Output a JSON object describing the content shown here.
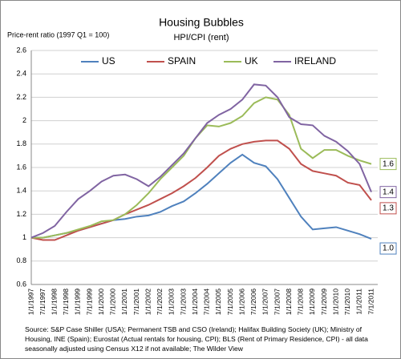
{
  "chart_data": {
    "type": "line",
    "title": "Housing Bubbles",
    "subtitle": "HPI/CPI (rent)",
    "y_label": "Price-rent ratio (1997 Q1 = 100)",
    "source": "Source: S&P Case Shiller (USA); Permanent TSB and CSO (Ireland); Halifax Building Society (UK); Ministry of Housing, INE (Spain);  Eurostat (Actual rentals for housing, CPI); BLS (Rent of Primary Residence, CPI) -  all data seasonally adjusted using Census X12 if not available; The Wilder View",
    "categories": [
      "1/1/1997",
      "7/1/1997",
      "1/1/1998",
      "7/1/1998",
      "1/1/1999",
      "7/1/1999",
      "1/1/2000",
      "7/1/2000",
      "1/1/2001",
      "7/1/2001",
      "1/1/2002",
      "7/1/2002",
      "1/1/2003",
      "7/1/2003",
      "1/1/2004",
      "7/1/2004",
      "1/1/2005",
      "7/1/2005",
      "1/1/2006",
      "7/1/2006",
      "1/1/2007",
      "7/1/2007",
      "1/1/2008",
      "7/1/2008",
      "1/1/2009",
      "7/1/2009",
      "1/1/2010",
      "7/1/2010",
      "1/1/2011",
      "7/1/2011"
    ],
    "series": [
      {
        "name": "US",
        "color": "#4f81bd",
        "values": [
          1.0,
          1.0,
          1.02,
          1.04,
          1.06,
          1.09,
          1.12,
          1.15,
          1.16,
          1.18,
          1.19,
          1.22,
          1.27,
          1.31,
          1.38,
          1.46,
          1.55,
          1.64,
          1.71,
          1.64,
          1.61,
          1.5,
          1.34,
          1.18,
          1.07,
          1.08,
          1.09,
          1.06,
          1.03,
          0.99
        ],
        "end_label": "1.0"
      },
      {
        "name": "SPAIN",
        "color": "#c0504d",
        "values": [
          1.0,
          0.98,
          0.98,
          1.02,
          1.06,
          1.09,
          1.12,
          1.15,
          1.2,
          1.24,
          1.28,
          1.33,
          1.38,
          1.44,
          1.51,
          1.6,
          1.7,
          1.76,
          1.8,
          1.82,
          1.83,
          1.83,
          1.76,
          1.63,
          1.57,
          1.55,
          1.53,
          1.47,
          1.45,
          1.32
        ],
        "end_label": "1.3"
      },
      {
        "name": "UK",
        "color": "#9bbb59",
        "values": [
          1.0,
          1.0,
          1.02,
          1.04,
          1.07,
          1.1,
          1.14,
          1.15,
          1.2,
          1.28,
          1.38,
          1.5,
          1.6,
          1.7,
          1.85,
          1.96,
          1.95,
          1.98,
          2.04,
          2.15,
          2.2,
          2.18,
          2.05,
          1.76,
          1.68,
          1.75,
          1.75,
          1.7,
          1.66,
          1.63
        ],
        "end_label": "1.6"
      },
      {
        "name": "IRELAND",
        "color": "#8064a2",
        "values": [
          1.0,
          1.04,
          1.1,
          1.22,
          1.33,
          1.4,
          1.48,
          1.53,
          1.54,
          1.5,
          1.44,
          1.52,
          1.62,
          1.72,
          1.85,
          1.98,
          2.05,
          2.1,
          2.18,
          2.31,
          2.3,
          2.2,
          2.03,
          1.97,
          1.96,
          1.87,
          1.82,
          1.74,
          1.63,
          1.39
        ],
        "end_label": "1.4"
      }
    ],
    "ylim": [
      0.6,
      2.6
    ],
    "yticks": [
      0.6,
      0.8,
      1,
      1.2,
      1.4,
      1.6,
      1.8,
      2,
      2.2,
      2.4,
      2.6
    ],
    "grid": true,
    "legend": "top"
  }
}
